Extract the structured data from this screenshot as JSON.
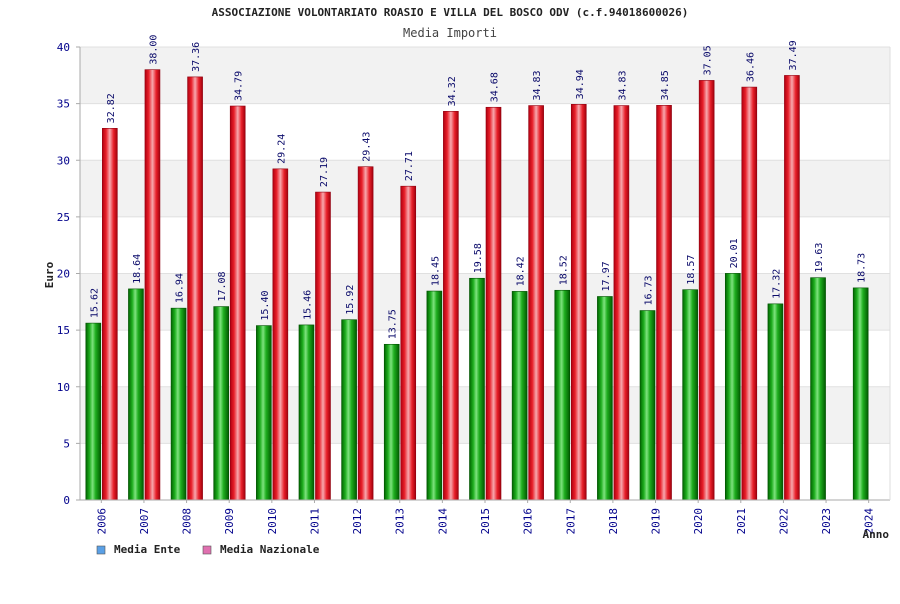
{
  "chart_data": {
    "type": "bar",
    "title": "ASSOCIAZIONE VOLONTARIATO ROASIO E VILLA DEL BOSCO ODV (c.f.94018600026)",
    "subtitle": "Media Importi",
    "xlabel": "Anno",
    "ylabel": "Euro",
    "ylim": [
      0,
      40
    ],
    "yticks": [
      0,
      5,
      10,
      15,
      20,
      25,
      30,
      35,
      40
    ],
    "grid": true,
    "legend_position": "bottom-left",
    "categories": [
      "2006",
      "2007",
      "2008",
      "2009",
      "2010",
      "2011",
      "2012",
      "2013",
      "2014",
      "2015",
      "2016",
      "2017",
      "2018",
      "2019",
      "2020",
      "2021",
      "2022",
      "2023",
      "2024"
    ],
    "series": [
      {
        "name": "Media Ente",
        "color": "#00a000",
        "legend_color": "#5aa0e6",
        "values": [
          15.62,
          18.64,
          16.94,
          17.08,
          15.4,
          15.46,
          15.92,
          13.75,
          18.45,
          19.58,
          18.42,
          18.52,
          17.97,
          16.73,
          18.57,
          20.01,
          17.32,
          19.63,
          18.73
        ],
        "labels": [
          "15.62",
          "18.64",
          "16.94",
          "17.08",
          "15.40",
          "15.46",
          "15.92",
          "13.75",
          "18.45",
          "19.58",
          "18.42",
          "18.52",
          "17.97",
          "16.73",
          "18.57",
          "20.01",
          "17.32",
          "19.63",
          "18.73"
        ]
      },
      {
        "name": "Media Nazionale",
        "color": "#e8202a",
        "legend_color": "#e070b0",
        "values": [
          32.82,
          38.0,
          37.36,
          34.79,
          29.24,
          27.19,
          29.43,
          27.71,
          34.32,
          34.68,
          34.83,
          34.94,
          34.83,
          34.85,
          37.05,
          36.46,
          37.49,
          null,
          null
        ],
        "labels": [
          "32.82",
          "38.00",
          "37.36",
          "34.79",
          "29.24",
          "27.19",
          "29.43",
          "27.71",
          "34.32",
          "34.68",
          "34.83",
          "34.94",
          "34.83",
          "34.85",
          "37.05",
          "36.46",
          "37.49",
          null,
          null
        ]
      }
    ]
  }
}
